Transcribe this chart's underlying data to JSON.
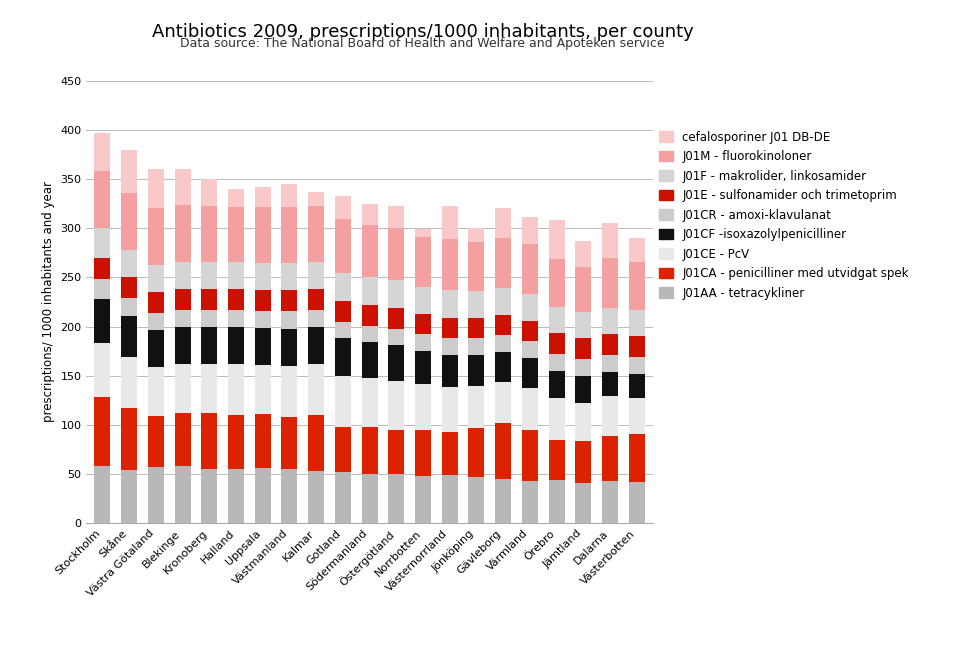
{
  "title": "Antibiotics 2009, prescriptions/1000 inhabitants, per county",
  "subtitle": "Data source: The National Board of Health and Welfare and Apoteken service",
  "ylabel": "prescriptions/ 1000 inhabitants and year",
  "ylim": [
    0,
    450
  ],
  "yticks": [
    0,
    50,
    100,
    150,
    200,
    250,
    300,
    350,
    400,
    450
  ],
  "counties": [
    "Stockholm",
    "Skåne",
    "Västra Götaland",
    "Blekinge",
    "Kronoberg",
    "Halland",
    "Uppsala",
    "Västmanland",
    "Kalmar",
    "Gotland",
    "Södermanland",
    "Östergötland",
    "Norrbotten",
    "Västernorrland",
    "Jönköping",
    "Gävleborg",
    "Värmland",
    "Örebro",
    "Jämtland",
    "Dalarna",
    "Västerbotten"
  ],
  "bar_order": [
    "J01AA - tetracykliner",
    "J01CA - penicilliner med utvidgat spek",
    "J01CE - PcV",
    "J01CF -isoxazolylpenicilliner",
    "J01CR - amoxi-klavulanat",
    "J01E - sulfonamider och trimetoprim",
    "J01F - makrolider, linkosamider",
    "J01M - fluorokinoloner",
    "cefalosporiner J01 DB-DE"
  ],
  "legend_order": [
    "cefalosporiner J01 DB-DE",
    "J01M - fluorokinoloner",
    "J01F - makrolider, linkosamider",
    "J01E - sulfonamider och trimetoprim",
    "J01CR - amoxi-klavulanat",
    "J01CF -isoxazolylpenicilliner",
    "J01CE - PcV",
    "J01CA - penicilliner med utvidgat spek",
    "J01AA - tetracykliner"
  ],
  "colors": {
    "J01AA - tetracykliner": "#b8b8b8",
    "J01CA - penicilliner med utvidgat spek": "#dd2200",
    "J01CE - PcV": "#e8e8e8",
    "J01CF -isoxazolylpenicilliner": "#111111",
    "J01CR - amoxi-klavulanat": "#cccccc",
    "J01E - sulfonamider och trimetoprim": "#cc1100",
    "J01F - makrolider, linkosamider": "#d5d5d5",
    "J01M - fluorokinoloner": "#f5a0a0",
    "cefalosporiner J01 DB-DE": "#f9c8c8"
  },
  "stacked_data": {
    "J01AA - tetracykliner": [
      58,
      54,
      57,
      58,
      55,
      55,
      56,
      55,
      53,
      52,
      50,
      50,
      48,
      49,
      47,
      45,
      43,
      44,
      41,
      43,
      42
    ],
    "J01CA - penicilliner med utvidgat spek": [
      70,
      63,
      52,
      54,
      57,
      55,
      55,
      53,
      57,
      46,
      48,
      45,
      47,
      44,
      50,
      57,
      52,
      41,
      43,
      46,
      49
    ],
    "J01CE - PcV": [
      55,
      52,
      50,
      50,
      50,
      52,
      50,
      52,
      52,
      52,
      50,
      50,
      47,
      46,
      43,
      42,
      43,
      42,
      38,
      40,
      36
    ],
    "J01CF -isoxazolylpenicilliner": [
      45,
      42,
      38,
      38,
      38,
      38,
      38,
      38,
      38,
      38,
      36,
      36,
      33,
      32,
      31,
      30,
      30,
      28,
      28,
      25,
      25
    ],
    "J01CR - amoxi-klavulanat": [
      20,
      18,
      17,
      17,
      17,
      17,
      17,
      18,
      17,
      17,
      17,
      17,
      17,
      17,
      17,
      17,
      17,
      17,
      17,
      17,
      17
    ],
    "J01E - sulfonamider och trimetoprim": [
      22,
      21,
      21,
      21,
      21,
      21,
      21,
      21,
      21,
      21,
      21,
      21,
      21,
      21,
      21,
      21,
      21,
      21,
      21,
      21,
      21
    ],
    "J01F - makrolider, linkosamider": [
      30,
      28,
      28,
      28,
      28,
      28,
      28,
      28,
      28,
      28,
      28,
      28,
      27,
      28,
      27,
      27,
      27,
      27,
      27,
      27,
      27
    ],
    "J01M - fluorokinoloner": [
      58,
      58,
      57,
      58,
      57,
      55,
      56,
      56,
      56,
      55,
      53,
      53,
      51,
      52,
      50,
      51,
      51,
      49,
      46,
      51,
      49
    ],
    "cefalosporiner J01 DB-DE": [
      39,
      43,
      40,
      36,
      27,
      19,
      21,
      24,
      15,
      24,
      22,
      22,
      8,
      33,
      14,
      30,
      27,
      39,
      26,
      35,
      24
    ]
  },
  "background_color": "#ffffff",
  "grid_color": "#bbbbbb",
  "title_fontsize": 13,
  "subtitle_fontsize": 9,
  "legend_fontsize": 8.5,
  "tick_fontsize": 8,
  "ylabel_fontsize": 8.5,
  "bar_width": 0.6
}
